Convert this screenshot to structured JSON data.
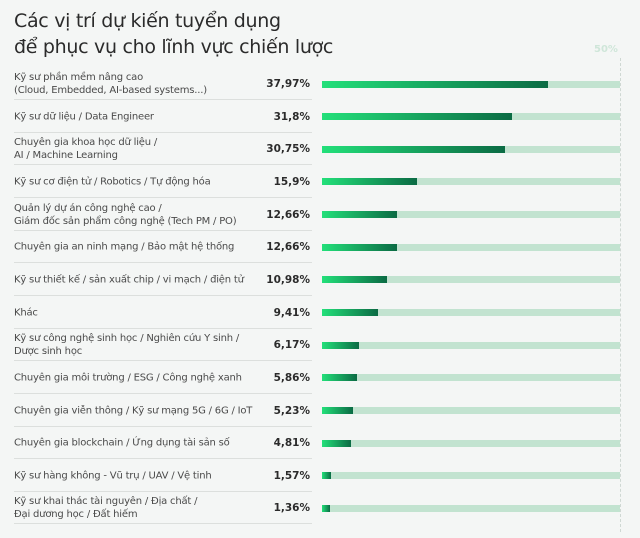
{
  "chart_data": {
    "type": "bar",
    "orientation": "horizontal",
    "title": "Các vị trí dự kiến tuyển dụng\nđể phục vụ cho lĩnh vực chiến lược",
    "title_lines": [
      "Các vị trí dự kiến tuyển dụng",
      "để phục vụ cho lĩnh vực chiến lược"
    ],
    "xlim": [
      0,
      50
    ],
    "axis_max_label": "50%",
    "grid": false,
    "colors": {
      "fill_start": "#23e07a",
      "fill_end": "#0b6b44",
      "track": "#c2e3d0",
      "background": "#f4f6f5"
    },
    "categories": [
      "Kỹ sư phần mềm nâng cao\n(Cloud, Embedded, AI-based systems...)",
      "Kỹ sư dữ liệu / Data Engineer",
      "Chuyên gia khoa học dữ liệu /\nAI / Machine Learning",
      "Kỹ sư cơ điện tử / Robotics / Tự động hóa",
      "Quản lý dự án công nghệ cao /\nGiám đốc sản phẩm công nghệ (Tech PM / PO)",
      "Chuyên gia an ninh mạng / Bảo mật hệ thống",
      "Kỹ sư thiết kế / sản xuất chip / vi mạch / điện tử",
      "Khác",
      "Kỹ sư công nghệ sinh học / Nghiên cứu Y sinh /\nDược sinh học",
      "Chuyên gia môi trường / ESG / Công nghệ xanh",
      "Chuyên gia viễn thông / Kỹ sư mạng 5G / 6G / IoT",
      "Chuyên gia blockchain / Ứng dụng tài sản số",
      "Kỹ sư hàng không - Vũ trụ / UAV / Vệ tinh",
      "Kỹ sư khai thác tài nguyên / Địa chất /\nĐại dương học / Đất hiếm"
    ],
    "values": [
      37.97,
      31.8,
      30.75,
      15.9,
      12.66,
      12.66,
      10.98,
      9.41,
      6.17,
      5.86,
      5.23,
      4.81,
      1.57,
      1.36
    ],
    "value_labels": [
      "37,97%",
      "31,8%",
      "30,75%",
      "15,9%",
      "12,66%",
      "12,66%",
      "10,98%",
      "9,41%",
      "6,17%",
      "5,86%",
      "5,23%",
      "4,81%",
      "1,57%",
      "1,36%"
    ]
  }
}
